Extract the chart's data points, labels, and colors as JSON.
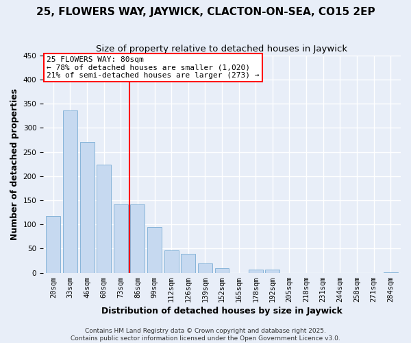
{
  "title": "25, FLOWERS WAY, JAYWICK, CLACTON-ON-SEA, CO15 2EP",
  "subtitle": "Size of property relative to detached houses in Jaywick",
  "xlabel": "Distribution of detached houses by size in Jaywick",
  "ylabel": "Number of detached properties",
  "categories": [
    "20sqm",
    "33sqm",
    "46sqm",
    "60sqm",
    "73sqm",
    "86sqm",
    "99sqm",
    "112sqm",
    "126sqm",
    "139sqm",
    "152sqm",
    "165sqm",
    "178sqm",
    "192sqm",
    "205sqm",
    "218sqm",
    "231sqm",
    "244sqm",
    "258sqm",
    "271sqm",
    "284sqm"
  ],
  "values": [
    117,
    336,
    270,
    224,
    142,
    142,
    95,
    46,
    40,
    19,
    10,
    0,
    6,
    6,
    0,
    0,
    0,
    0,
    0,
    0,
    1
  ],
  "bar_color": "#c6d9f0",
  "bar_edge_color": "#7aadd4",
  "vline_x": 4.5,
  "vline_color": "red",
  "ylim": [
    0,
    450
  ],
  "annotation_line1": "25 FLOWERS WAY: 80sqm",
  "annotation_line2": "← 78% of detached houses are smaller (1,020)",
  "annotation_line3": "21% of semi-detached houses are larger (273) →",
  "ann_box_color": "red",
  "footer1": "Contains HM Land Registry data © Crown copyright and database right 2025.",
  "footer2": "Contains public sector information licensed under the Open Government Licence v3.0.",
  "background_color": "#e8eef8",
  "title_fontsize": 11,
  "subtitle_fontsize": 9.5,
  "axis_label_fontsize": 9,
  "tick_fontsize": 7.5,
  "footer_fontsize": 6.5
}
